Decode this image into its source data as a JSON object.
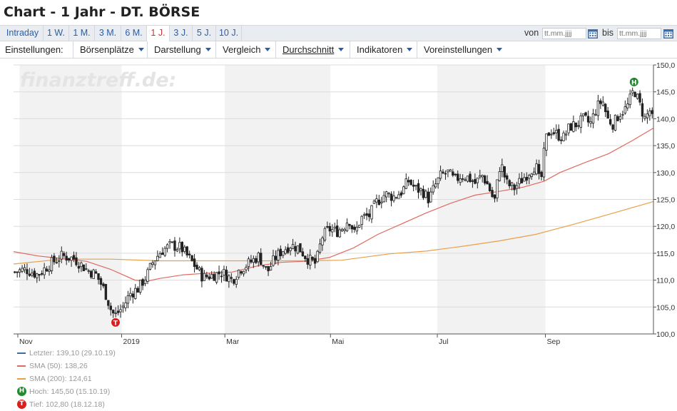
{
  "header": {
    "title": "Chart - 1 Jahr - DT. BÖRSE"
  },
  "tabs": [
    {
      "label": "Intraday",
      "active": false
    },
    {
      "label": "1 W.",
      "active": false
    },
    {
      "label": "1 M.",
      "active": false
    },
    {
      "label": "3 M.",
      "active": false
    },
    {
      "label": "6 M.",
      "active": false
    },
    {
      "label": "1 J.",
      "active": true
    },
    {
      "label": "3 J.",
      "active": false
    },
    {
      "label": "5 J.",
      "active": false
    },
    {
      "label": "10 J.",
      "active": false
    }
  ],
  "date_range": {
    "from_label": "von",
    "to_label": "bis",
    "from_placeholder": "tt.mm.jjjj",
    "to_placeholder": "tt.mm.jjjj"
  },
  "settings": {
    "label": "Einstellungen:",
    "menus": [
      {
        "label": "Börsenplätze"
      },
      {
        "label": "Darstellung"
      },
      {
        "label": "Vergleich"
      },
      {
        "label": "Durchschnitt"
      },
      {
        "label": "Indikatoren"
      },
      {
        "label": "Voreinstellungen"
      }
    ]
  },
  "watermark": "finanztreff.de:",
  "legend": [
    {
      "label": "Letzter: 139,10 (29.10.19)",
      "color": "#3f6ea6",
      "kind": "line"
    },
    {
      "label": "SMA (50): 138,26",
      "color": "#e06a60",
      "kind": "line"
    },
    {
      "label": "SMA (200): 124,61",
      "color": "#e8a04a",
      "kind": "line"
    },
    {
      "label": "Hoch: 145,50 (15.10.19)",
      "color": "#1f8a2e",
      "kind": "badge",
      "badge": "H"
    },
    {
      "label": "Tief: 102,80 (18.12.18)",
      "color": "#d8201f",
      "kind": "badge",
      "badge": "T"
    }
  ],
  "chart_data": {
    "type": "candlestick",
    "title": "Chart - 1 Jahr - DT. BÖRSE",
    "ylim": [
      100,
      150
    ],
    "y_ticks": [
      "100,0",
      "105,0",
      "110,0",
      "115,0",
      "120,0",
      "125,0",
      "130,0",
      "135,0",
      "140,0",
      "145,0",
      "150,0"
    ],
    "y_tick_values": [
      100,
      105,
      110,
      115,
      120,
      125,
      130,
      135,
      140,
      145,
      150
    ],
    "x_ticks": [
      {
        "label": "Nov",
        "week": 0.35
      },
      {
        "label": "2019",
        "week": 8.9
      },
      {
        "label": "Mar",
        "week": 17.4
      },
      {
        "label": "Mai",
        "week": 26.1
      },
      {
        "label": "Jul",
        "week": 34.9
      },
      {
        "label": "Sep",
        "week": 43.8
      }
    ],
    "shaded_month_bands": [
      [
        0.5,
        8.9
      ],
      [
        17.4,
        26.1
      ],
      [
        34.9,
        43.8
      ]
    ],
    "x_range_weeks": [
      0,
      52.7
    ],
    "close_anchors": [
      {
        "w": 0,
        "v": 111.5
      },
      {
        "w": 1,
        "v": 112
      },
      {
        "w": 2,
        "v": 111
      },
      {
        "w": 3,
        "v": 113
      },
      {
        "w": 4,
        "v": 114.5
      },
      {
        "w": 5,
        "v": 114
      },
      {
        "w": 6,
        "v": 112
      },
      {
        "w": 6.8,
        "v": 111
      },
      {
        "w": 7.5,
        "v": 108
      },
      {
        "w": 8.1,
        "v": 104
      },
      {
        "w": 8.4,
        "v": 103.5
      },
      {
        "w": 9,
        "v": 105
      },
      {
        "w": 9.6,
        "v": 107.5
      },
      {
        "w": 10.3,
        "v": 108.5
      },
      {
        "w": 11,
        "v": 111
      },
      {
        "w": 11.5,
        "v": 113.5
      },
      {
        "w": 12.2,
        "v": 115.5
      },
      {
        "w": 13,
        "v": 116.5
      },
      {
        "w": 13.8,
        "v": 116
      },
      {
        "w": 14.3,
        "v": 114.5
      },
      {
        "w": 15,
        "v": 112.5
      },
      {
        "w": 15.6,
        "v": 110.5
      },
      {
        "w": 16.5,
        "v": 111
      },
      {
        "w": 17.2,
        "v": 111.5
      },
      {
        "w": 18,
        "v": 110
      },
      {
        "w": 18.6,
        "v": 112
      },
      {
        "w": 19.3,
        "v": 113
      },
      {
        "w": 20.2,
        "v": 114.5
      },
      {
        "w": 20.9,
        "v": 111.5
      },
      {
        "w": 21.5,
        "v": 114
      },
      {
        "w": 22.1,
        "v": 115.5
      },
      {
        "w": 22.8,
        "v": 116.5
      },
      {
        "w": 23.5,
        "v": 116
      },
      {
        "w": 24.2,
        "v": 114
      },
      {
        "w": 24.9,
        "v": 113
      },
      {
        "w": 25.4,
        "v": 118
      },
      {
        "w": 26,
        "v": 119.5
      },
      {
        "w": 26.6,
        "v": 119
      },
      {
        "w": 27.2,
        "v": 120
      },
      {
        "w": 27.6,
        "v": 121.5
      },
      {
        "w": 28.1,
        "v": 118.5
      },
      {
        "w": 28.6,
        "v": 121.5
      },
      {
        "w": 29.3,
        "v": 122
      },
      {
        "w": 29.9,
        "v": 124.5
      },
      {
        "w": 30.6,
        "v": 126
      },
      {
        "w": 31.3,
        "v": 125.5
      },
      {
        "w": 32,
        "v": 126.5
      },
      {
        "w": 32.5,
        "v": 128.5
      },
      {
        "w": 33.1,
        "v": 127
      },
      {
        "w": 33.7,
        "v": 126.5
      },
      {
        "w": 34.2,
        "v": 125
      },
      {
        "w": 34.7,
        "v": 127.5
      },
      {
        "w": 35.2,
        "v": 129.5
      },
      {
        "w": 35.8,
        "v": 130
      },
      {
        "w": 36.3,
        "v": 128.5
      },
      {
        "w": 36.9,
        "v": 129.5
      },
      {
        "w": 37.5,
        "v": 129
      },
      {
        "w": 38,
        "v": 128
      },
      {
        "w": 38.6,
        "v": 129.5
      },
      {
        "w": 39.1,
        "v": 127.5
      },
      {
        "w": 39.6,
        "v": 124.5
      },
      {
        "w": 40.1,
        "v": 132
      },
      {
        "w": 40.6,
        "v": 128
      },
      {
        "w": 41.2,
        "v": 127
      },
      {
        "w": 41.8,
        "v": 128.5
      },
      {
        "w": 42.4,
        "v": 130
      },
      {
        "w": 43,
        "v": 131.5
      },
      {
        "w": 43.4,
        "v": 127.5
      },
      {
        "w": 43.8,
        "v": 136
      },
      {
        "w": 44.2,
        "v": 138
      },
      {
        "w": 44.8,
        "v": 137
      },
      {
        "w": 45.3,
        "v": 136.5
      },
      {
        "w": 45.8,
        "v": 138.5
      },
      {
        "w": 46.4,
        "v": 139
      },
      {
        "w": 47,
        "v": 140
      },
      {
        "w": 47.5,
        "v": 139
      },
      {
        "w": 48,
        "v": 142
      },
      {
        "w": 48.5,
        "v": 143.5
      },
      {
        "w": 48.9,
        "v": 140
      },
      {
        "w": 49.4,
        "v": 139
      },
      {
        "w": 49.9,
        "v": 141
      },
      {
        "w": 50.5,
        "v": 142
      },
      {
        "w": 51.1,
        "v": 145.5
      },
      {
        "w": 51.5,
        "v": 143
      },
      {
        "w": 52,
        "v": 140
      },
      {
        "w": 52.4,
        "v": 141.5
      },
      {
        "w": 52.7,
        "v": 139.1
      }
    ],
    "sma50": [
      {
        "w": 0,
        "v": 115.3
      },
      {
        "w": 2,
        "v": 114.5
      },
      {
        "w": 4,
        "v": 114
      },
      {
        "w": 6,
        "v": 113.5
      },
      {
        "w": 8,
        "v": 112
      },
      {
        "w": 10,
        "v": 110
      },
      {
        "w": 11,
        "v": 109.8
      },
      {
        "w": 12,
        "v": 110.3
      },
      {
        "w": 14,
        "v": 111
      },
      {
        "w": 16,
        "v": 111.3
      },
      {
        "w": 18,
        "v": 111.5
      },
      {
        "w": 20,
        "v": 112.6
      },
      {
        "w": 22,
        "v": 113.3
      },
      {
        "w": 24,
        "v": 113.5
      },
      {
        "w": 26,
        "v": 114.2
      },
      {
        "w": 28,
        "v": 116
      },
      {
        "w": 30,
        "v": 118.5
      },
      {
        "w": 32,
        "v": 120.5
      },
      {
        "w": 34,
        "v": 122.5
      },
      {
        "w": 36,
        "v": 124.3
      },
      {
        "w": 38,
        "v": 125.8
      },
      {
        "w": 40,
        "v": 126.5
      },
      {
        "w": 42,
        "v": 127.3
      },
      {
        "w": 43.7,
        "v": 128.4
      },
      {
        "w": 45,
        "v": 130
      },
      {
        "w": 47,
        "v": 131.8
      },
      {
        "w": 49,
        "v": 133.5
      },
      {
        "w": 51,
        "v": 136
      },
      {
        "w": 52.7,
        "v": 138.26
      }
    ],
    "sma200": [
      {
        "w": 0,
        "v": 113
      },
      {
        "w": 4,
        "v": 113.9
      },
      {
        "w": 8,
        "v": 113.9
      },
      {
        "w": 12,
        "v": 113.6
      },
      {
        "w": 16,
        "v": 113.6
      },
      {
        "w": 20,
        "v": 113.6
      },
      {
        "w": 24,
        "v": 113.6
      },
      {
        "w": 27,
        "v": 113.7
      },
      {
        "w": 29,
        "v": 114.3
      },
      {
        "w": 31,
        "v": 114.9
      },
      {
        "w": 34,
        "v": 115.4
      },
      {
        "w": 37,
        "v": 116.3
      },
      {
        "w": 40,
        "v": 117.3
      },
      {
        "w": 43,
        "v": 118.5
      },
      {
        "w": 46,
        "v": 120.3
      },
      {
        "w": 49,
        "v": 122.2
      },
      {
        "w": 52.7,
        "v": 124.61
      }
    ],
    "markers": [
      {
        "label": "H",
        "w": 51.1,
        "v": 145.5,
        "color": "#1f8a2e"
      },
      {
        "label": "T",
        "w": 8.4,
        "v": 102.8,
        "color": "#d8201f"
      }
    ],
    "series": [
      {
        "name": "Letzter: 139,10 (29.10.19)"
      },
      {
        "name": "SMA (50): 138,26"
      },
      {
        "name": "SMA (200): 124,61"
      }
    ]
  }
}
